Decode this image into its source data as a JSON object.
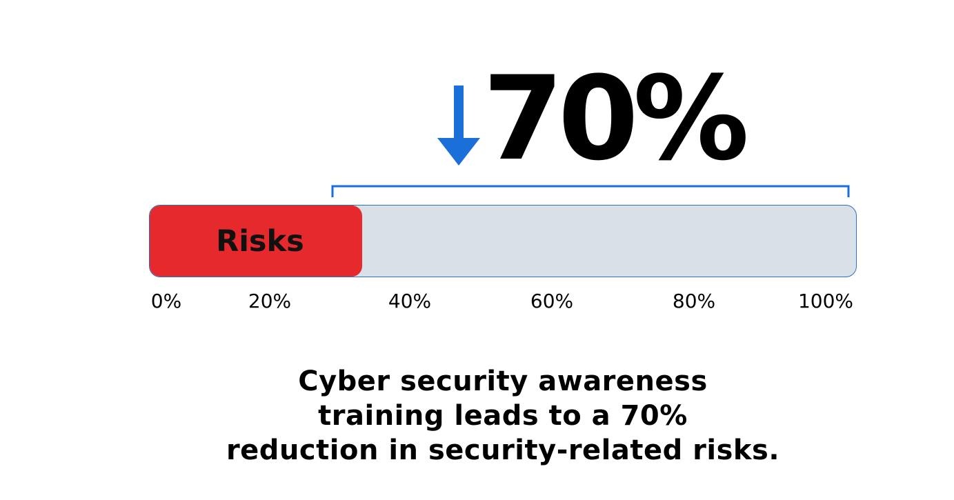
{
  "headline": {
    "value_text": "70%",
    "arrow_icon": "down-arrow-icon",
    "arrow_color": "#1a6fd8"
  },
  "chart_data": {
    "type": "bar",
    "orientation": "horizontal",
    "categories": [
      "Risks"
    ],
    "values": [
      30
    ],
    "reduction_percent": 70,
    "xlim": [
      0,
      100
    ],
    "tick_labels": [
      "0%",
      "20%",
      "40%",
      "60%",
      "80%",
      "100%"
    ],
    "bar_color": "#e5292c",
    "track_color": "#dae0e8",
    "bracket_color": "#1a6fd8"
  },
  "caption": {
    "line1": "Cyber security awareness",
    "line2": "training leads to a 70%",
    "line3": "reduction in security-related risks."
  }
}
